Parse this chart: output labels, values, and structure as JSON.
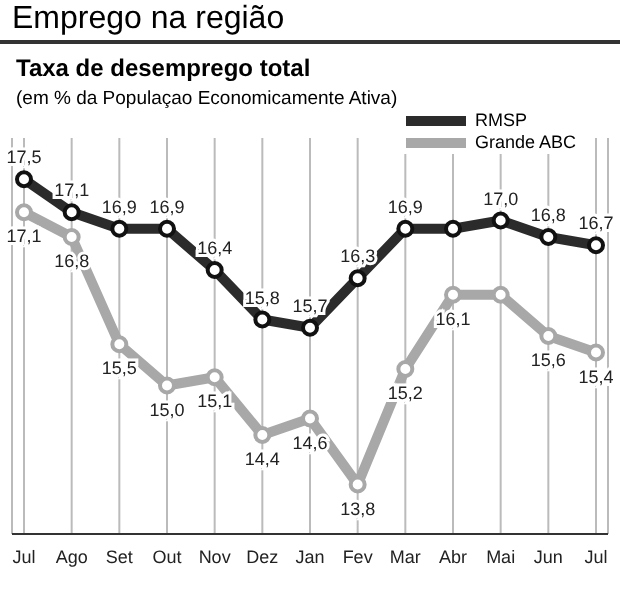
{
  "chart_data": {
    "type": "line",
    "title": "Emprego na região",
    "subtitle": "Taxa de desemprego total",
    "annotations": [
      "(em % da Populaçao Economicamente Ativa)"
    ],
    "categories": [
      "Jul",
      "Ago",
      "Set",
      "Out",
      "Nov",
      "Dez",
      "Jan",
      "Fev",
      "Mar",
      "Abr",
      "Mai",
      "Jun",
      "Jul"
    ],
    "ylim": [
      13.2,
      18
    ],
    "tick_labels": "x",
    "series": [
      {
        "name": "RMSP",
        "color": "#2b2b2b",
        "values": [
          17.5,
          17.1,
          16.9,
          16.9,
          16.4,
          15.8,
          15.7,
          16.3,
          16.9,
          16.9,
          17.0,
          16.8,
          16.7
        ],
        "value_labels": [
          "17,5",
          "17,1",
          "16,9",
          "16,9",
          "16,4",
          "15,8",
          "15,7",
          "16,3",
          "16,9",
          null,
          "17,0",
          "16,8",
          "16,7"
        ]
      },
      {
        "name": "Grande ABC",
        "color": "#a8a8a8",
        "values": [
          17.1,
          16.8,
          15.5,
          15.0,
          15.1,
          14.4,
          14.6,
          13.8,
          15.2,
          16.1,
          16.1,
          15.6,
          15.4
        ],
        "value_labels": [
          "17,1",
          "16,8",
          "15,5",
          "15,0",
          "15,1",
          "14,4",
          "14,6",
          "13,8",
          "15,2",
          "16,1",
          null,
          "15,6",
          "15,4"
        ]
      }
    ],
    "grid": "x",
    "legend": "top right",
    "marker": "circle",
    "line_style": "solid"
  }
}
